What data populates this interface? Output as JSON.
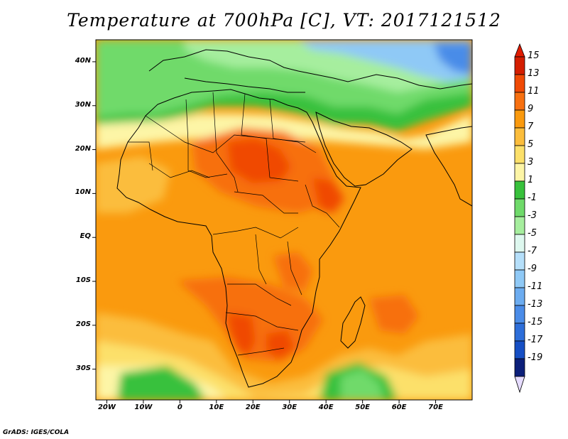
{
  "title": "Temperature at 700hPa [C], VT: 2017121512",
  "credit": "GrADS: IGES/COLA",
  "map": {
    "lon_range": [
      -23,
      80
    ],
    "lat_range": [
      -37,
      45
    ],
    "lat_ticks": [
      {
        "value": 40,
        "label": "40N"
      },
      {
        "value": 30,
        "label": "30N"
      },
      {
        "value": 20,
        "label": "20N"
      },
      {
        "value": 10,
        "label": "10N"
      },
      {
        "value": 0,
        "label": "EQ"
      },
      {
        "value": -10,
        "label": "10S"
      },
      {
        "value": -20,
        "label": "20S"
      },
      {
        "value": -30,
        "label": "30S"
      }
    ],
    "lon_ticks": [
      {
        "value": -20,
        "label": "20W"
      },
      {
        "value": -10,
        "label": "10W"
      },
      {
        "value": 0,
        "label": "0"
      },
      {
        "value": 10,
        "label": "10E"
      },
      {
        "value": 20,
        "label": "20E"
      },
      {
        "value": 30,
        "label": "30E"
      },
      {
        "value": 40,
        "label": "40E"
      },
      {
        "value": 50,
        "label": "50E"
      },
      {
        "value": 60,
        "label": "60E"
      },
      {
        "value": 70,
        "label": "70E"
      }
    ]
  },
  "colorbar": {
    "levels": [
      {
        "label": "15",
        "color": "#d41e00"
      },
      {
        "label": "13",
        "color": "#f04a05"
      },
      {
        "label": "11",
        "color": "#f77010"
      },
      {
        "label": "9",
        "color": "#fa9a0e"
      },
      {
        "label": "7",
        "color": "#fbbd3c"
      },
      {
        "label": "5",
        "color": "#fce06a"
      },
      {
        "label": "3",
        "color": "#fdf5a6"
      },
      {
        "label": "1",
        "color": "#38c13c"
      },
      {
        "label": "-1",
        "color": "#6fda6a"
      },
      {
        "label": "-3",
        "color": "#a6ee9e"
      },
      {
        "label": "-5",
        "color": "#def8ef"
      },
      {
        "label": "-7",
        "color": "#b5dffa"
      },
      {
        "label": "-9",
        "color": "#8fc9f6"
      },
      {
        "label": "-11",
        "color": "#6cacf0"
      },
      {
        "label": "-13",
        "color": "#4a8ce8"
      },
      {
        "label": "-15",
        "color": "#2d6ed9"
      },
      {
        "label": "-17",
        "color": "#164fc4"
      },
      {
        "label": "-19",
        "color": "#0c1f7a"
      }
    ],
    "below_color": "#e6dcff",
    "top_color": "#e01c00"
  },
  "field_colors": {
    "hot": "#f04a05",
    "warm": "#f77010",
    "base": "#fa9a0e",
    "mild": "#fbbd3c",
    "cool": "#fce06a",
    "pale": "#fdf5a6",
    "green": "#38c13c",
    "lightgreen": "#6fda6a",
    "mint": "#a6ee9e",
    "cold": "#8fc9f6",
    "colder": "#4a8ce8"
  }
}
